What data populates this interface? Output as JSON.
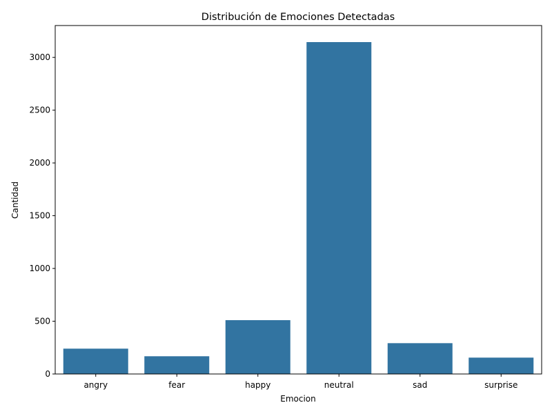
{
  "chart_data": {
    "type": "bar",
    "title": "Distribución de Emociones Detectadas",
    "xlabel": "Emocion",
    "ylabel": "Cantidad",
    "categories": [
      "angry",
      "fear",
      "happy",
      "neutral",
      "sad",
      "surprise"
    ],
    "values": [
      240,
      168,
      510,
      3145,
      292,
      155
    ],
    "ylim": [
      0,
      3302
    ],
    "yticks": [
      0,
      500,
      1000,
      1500,
      2000,
      2500,
      3000
    ],
    "grid": false,
    "legend": "none",
    "bar_color": "#3274a1"
  }
}
